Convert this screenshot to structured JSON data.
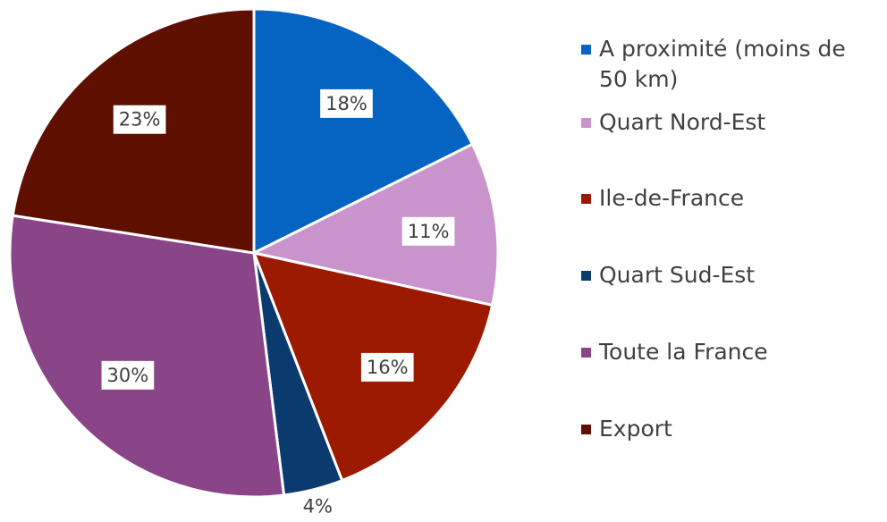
{
  "chart_data": {
    "type": "pie",
    "categories": [
      "A proximité (moins de 50 km)",
      "Quart Nord-Est",
      "Ile-de-France",
      "Quart Sud-Est",
      "Toute la France",
      "Export"
    ],
    "values": [
      18,
      11,
      16,
      4,
      30,
      23
    ],
    "value_labels": [
      "18%",
      "11%",
      "16%",
      "4%",
      "30%",
      "23%"
    ],
    "colors": [
      "#0563c1",
      "#c994cb",
      "#9c1a00",
      "#0b3b6e",
      "#8a4588",
      "#5e0f00"
    ],
    "legend": "right"
  }
}
